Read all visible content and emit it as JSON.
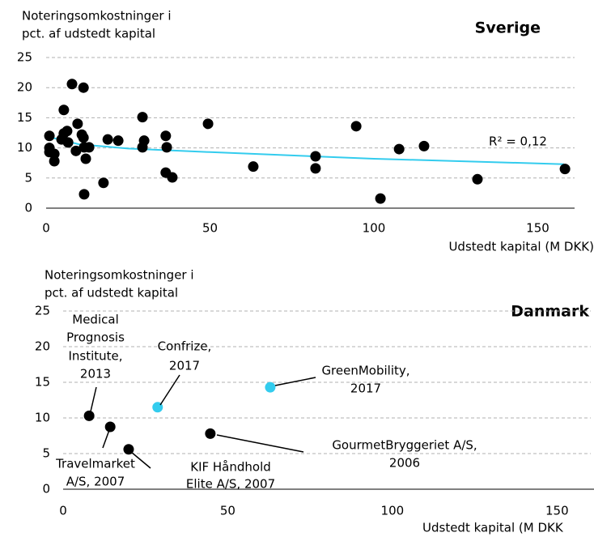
{
  "chart_data": [
    {
      "type": "scatter",
      "title": "Sverige",
      "ylabel": [
        "Noteringsomkostninger i",
        "pct. af udstedt kapital"
      ],
      "xlabel": "Udstedt kapital (M DKK)",
      "color": "#000000",
      "x": [
        1,
        1,
        1,
        2.5,
        2.5,
        5.4,
        4.7,
        5.4,
        6.4,
        6.7,
        7.9,
        9.1,
        9.6,
        10.9,
        11.4,
        11.4,
        11.6,
        12.1,
        13.1,
        11.6,
        18.8,
        22,
        17.5,
        29.4,
        29.9,
        29.4,
        36.5,
        36.8,
        36.5,
        38.5,
        49.4,
        63.2,
        82.2,
        82.2,
        94.6,
        102,
        107.7,
        115.3,
        131.6,
        158.3
      ],
      "values": [
        12.0,
        10.0,
        9.3,
        9.0,
        7.8,
        16.3,
        11.4,
        12.4,
        12.8,
        10.9,
        20.6,
        9.5,
        14.0,
        12.2,
        20.0,
        11.7,
        10.1,
        8.2,
        10.1,
        2.3,
        11.4,
        11.2,
        4.2,
        15.1,
        11.2,
        10.1,
        12.0,
        10.1,
        5.9,
        5.1,
        14.0,
        6.9,
        8.6,
        6.6,
        13.6,
        1.6,
        9.8,
        10.3,
        4.8,
        6.5
      ],
      "trendline": {
        "color": "#33ccee",
        "x": [
          1,
          10,
          25,
          50,
          100,
          158
        ],
        "values": [
          11.8,
          10.6,
          9.9,
          9.3,
          8.2,
          7.3
        ]
      },
      "annotation": "R² = 0,12",
      "xlim": [
        0,
        160
      ],
      "ylim": [
        0,
        25
      ],
      "xticks": [
        0,
        50,
        100,
        150
      ],
      "yticks": [
        0,
        5,
        10,
        15,
        20,
        25
      ],
      "grid": true
    },
    {
      "type": "scatter",
      "title": "Danmark",
      "ylabel": [
        "Noteringsomkostninger i",
        "pct. af udstedt kapital"
      ],
      "xlabel": "Udstedt kapital (M DKK",
      "series": [
        {
          "color": "#000000",
          "x": [
            7.9,
            14.3,
            19.9,
            44.7
          ],
          "values": [
            10.3,
            8.75,
            5.6,
            7.8
          ]
        },
        {
          "color": "#33ccee",
          "x": [
            28.7,
            62.9
          ],
          "values": [
            11.5,
            14.3
          ]
        }
      ],
      "annotations": [
        {
          "text": [
            "Medical",
            "Prognosis",
            "Institute,",
            "2013"
          ]
        },
        {
          "text": [
            "Confrize,",
            "2017"
          ]
        },
        {
          "text": [
            "GreenMobility,",
            "2017"
          ]
        },
        {
          "text": [
            "Travelmarket",
            "A/S, 2007"
          ]
        },
        {
          "text": [
            "KIF Håndhold",
            "Elite A/S, 2007"
          ]
        },
        {
          "text": [
            "GourmetBryggeriet A/S,",
            "2006"
          ]
        }
      ],
      "xlim": [
        0,
        160
      ],
      "ylim": [
        0,
        25
      ],
      "xticks": [
        0,
        50,
        100,
        150
      ],
      "yticks": [
        0,
        5,
        10,
        15,
        20,
        25
      ],
      "grid": true
    }
  ]
}
